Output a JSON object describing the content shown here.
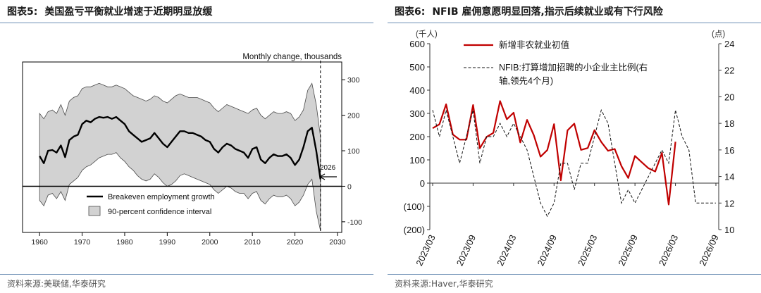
{
  "left": {
    "label": "图表5:",
    "title": "美国盈亏平衡就业增速于近期明显放缓",
    "source": "资料来源:美联储,华泰研究",
    "chart_data": {
      "type": "line",
      "units_label": "Monthly change, thousands",
      "x_ticks": [
        1960,
        1970,
        1980,
        1990,
        2000,
        2010,
        2020,
        2030
      ],
      "xlim": [
        1956,
        2031
      ],
      "y_ticks": [
        -100,
        0,
        100,
        200,
        300
      ],
      "ylim": [
        -130,
        350
      ],
      "marker_year": 2026,
      "marker_label": "2026",
      "legend": {
        "line": "Breakeven employment growth",
        "band": "90-percent confidence interval"
      },
      "series_line": {
        "name": "Breakeven employment growth",
        "x": [
          1960,
          1961,
          1962,
          1963,
          1964,
          1965,
          1966,
          1967,
          1968,
          1969,
          1970,
          1971,
          1972,
          1973,
          1974,
          1975,
          1976,
          1977,
          1978,
          1979,
          1980,
          1981,
          1982,
          1983,
          1984,
          1985,
          1986,
          1987,
          1988,
          1989,
          1990,
          1991,
          1992,
          1993,
          1994,
          1995,
          1996,
          1997,
          1998,
          1999,
          2000,
          2001,
          2002,
          2003,
          2004,
          2005,
          2006,
          2007,
          2008,
          2009,
          2010,
          2011,
          2012,
          2013,
          2014,
          2015,
          2016,
          2017,
          2018,
          2019,
          2020,
          2021,
          2022,
          2023,
          2024,
          2025,
          2026
        ],
        "values": [
          85,
          65,
          100,
          102,
          95,
          115,
          82,
          130,
          140,
          145,
          175,
          185,
          180,
          190,
          195,
          193,
          195,
          190,
          195,
          185,
          175,
          155,
          145,
          135,
          125,
          130,
          135,
          150,
          135,
          120,
          110,
          125,
          140,
          155,
          155,
          150,
          150,
          145,
          140,
          130,
          125,
          105,
          95,
          110,
          120,
          115,
          105,
          100,
          95,
          80,
          105,
          110,
          75,
          65,
          80,
          90,
          85,
          85,
          90,
          80,
          60,
          75,
          110,
          155,
          165,
          100,
          20
        ]
      },
      "series_band": {
        "name": "90-percent confidence interval",
        "x": [
          1960,
          1961,
          1962,
          1963,
          1964,
          1965,
          1966,
          1967,
          1968,
          1969,
          1970,
          1971,
          1972,
          1973,
          1974,
          1975,
          1976,
          1977,
          1978,
          1979,
          1980,
          1981,
          1982,
          1983,
          1984,
          1985,
          1986,
          1987,
          1988,
          1989,
          1990,
          1991,
          1992,
          1993,
          1994,
          1995,
          1996,
          1997,
          1998,
          1999,
          2000,
          2001,
          2002,
          2003,
          2004,
          2005,
          2006,
          2007,
          2008,
          2009,
          2010,
          2011,
          2012,
          2013,
          2014,
          2015,
          2016,
          2017,
          2018,
          2019,
          2020,
          2021,
          2022,
          2023,
          2024,
          2025,
          2026
        ],
        "upper": [
          205,
          190,
          210,
          215,
          205,
          230,
          200,
          240,
          250,
          255,
          275,
          280,
          280,
          285,
          290,
          285,
          280,
          280,
          285,
          280,
          275,
          265,
          255,
          250,
          245,
          240,
          245,
          255,
          250,
          240,
          235,
          245,
          255,
          260,
          255,
          250,
          250,
          250,
          245,
          240,
          235,
          220,
          210,
          220,
          230,
          225,
          220,
          215,
          210,
          205,
          215,
          220,
          200,
          190,
          200,
          210,
          205,
          205,
          210,
          205,
          185,
          195,
          215,
          270,
          290,
          230,
          140
        ],
        "lower": [
          -40,
          -55,
          -25,
          -20,
          -35,
          -15,
          -40,
          5,
          15,
          25,
          45,
          55,
          60,
          70,
          80,
          85,
          90,
          90,
          95,
          80,
          70,
          55,
          45,
          30,
          20,
          15,
          20,
          35,
          25,
          10,
          0,
          5,
          15,
          30,
          35,
          30,
          25,
          20,
          15,
          10,
          5,
          -10,
          -20,
          -10,
          0,
          -5,
          -15,
          -20,
          -20,
          -35,
          -20,
          -15,
          -40,
          -50,
          -35,
          -25,
          -30,
          -30,
          -25,
          -35,
          -55,
          -45,
          -25,
          5,
          20,
          -70,
          -125
        ]
      }
    }
  },
  "right": {
    "label": "图表6:",
    "title": "NFIB 雇佣意愿明显回落,指示后续就业或有下行风险",
    "source": "资料来源:Haver,华泰研究",
    "chart_data": {
      "type": "line",
      "left_unit": "(千人)",
      "right_unit": "(点)",
      "left_ticks": [
        -200,
        -100,
        0,
        100,
        200,
        300,
        400,
        500,
        600
      ],
      "left_tick_labels": [
        "(200)",
        "(100)",
        "0",
        "100",
        "200",
        "300",
        "400",
        "500",
        "600"
      ],
      "left_ylim": [
        -200,
        600
      ],
      "right_ticks": [
        10,
        12,
        14,
        16,
        18,
        20,
        22,
        24
      ],
      "right_ylim": [
        10,
        24
      ],
      "x_tick_labels": [
        "2023/03",
        "2023/09",
        "2024/03",
        "2024/09",
        "2025/03",
        "2025/09",
        "2026/03",
        "2026/09"
      ],
      "x_range_months": [
        0,
        42
      ],
      "legend": {
        "red": "新增非农就业初值",
        "dashed_line1": "NFIB:打算增加招聘的小企业主比例(右",
        "dashed_line2": "轴,领先4个月)"
      },
      "series": [
        {
          "name": "新增非农就业初值",
          "axis": "left",
          "color": "#c00000",
          "month_index": [
            0,
            1,
            2,
            3,
            4,
            5,
            6,
            7,
            8,
            9,
            10,
            11,
            12,
            13,
            14,
            15,
            16,
            17,
            18,
            19,
            20,
            21,
            22,
            23,
            24,
            25,
            26,
            27,
            28,
            29,
            30,
            31,
            32,
            33,
            34,
            35,
            36
          ],
          "values": [
            236,
            253,
            339,
            209,
            187,
            187,
            336,
            150,
            199,
            216,
            353,
            275,
            303,
            175,
            272,
            206,
            114,
            142,
            254,
            12,
            227,
            256,
            143,
            151,
            228,
            177,
            139,
            147,
            73,
            22,
            117,
            90,
            64,
            50,
            130,
            -92,
            178
          ]
        },
        {
          "name": "NFIB:打算增加招聘的小企业主比例(右轴,领先4个月)",
          "axis": "right",
          "dashed": true,
          "month_index": [
            0,
            1,
            2,
            3,
            4,
            5,
            6,
            7,
            8,
            9,
            10,
            11,
            12,
            13,
            14,
            15,
            16,
            17,
            18,
            19,
            20,
            21,
            22,
            23,
            24,
            25,
            26,
            27,
            28,
            29,
            30,
            31,
            32,
            33,
            34,
            35,
            36,
            37,
            38,
            39,
            40,
            41,
            42
          ],
          "values": [
            19,
            17,
            19,
            17,
            15,
            17,
            19,
            15,
            17,
            17,
            18,
            17,
            18,
            17,
            16,
            14,
            12,
            11,
            12,
            15,
            15,
            13,
            15,
            15,
            17,
            19,
            18,
            15,
            12,
            13,
            12,
            13,
            14,
            15,
            16,
            15,
            19,
            17,
            16,
            12,
            12,
            12,
            12
          ]
        }
      ]
    }
  }
}
